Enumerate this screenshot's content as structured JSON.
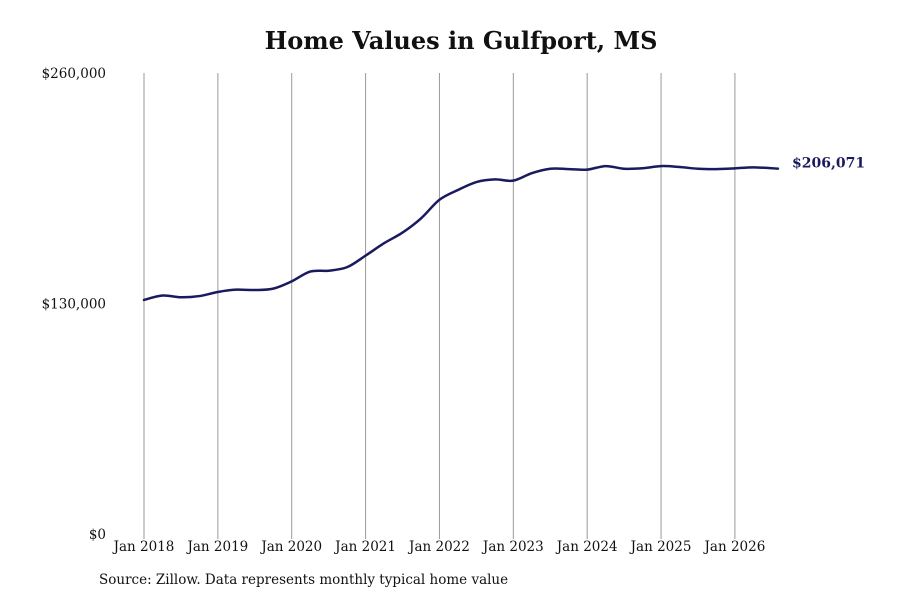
{
  "chart_data": {
    "type": "line",
    "title": "Home Values in Gulfport, MS",
    "xlabel": "",
    "ylabel": "",
    "source": "Source: Zillow. Data represents monthly typical home value",
    "ylim": [
      0,
      260000
    ],
    "yticks": [
      0,
      130000,
      260000
    ],
    "ytick_labels": [
      "$0",
      "$130,000",
      "$260,000"
    ],
    "xticks": [
      "2018-01",
      "2019-01",
      "2020-01",
      "2021-01",
      "2022-01",
      "2023-01",
      "2024-01",
      "2025-01",
      "2026-01"
    ],
    "xtick_labels": [
      "Jan 2018",
      "Jan 2019",
      "Jan 2020",
      "Jan 2021",
      "Jan 2022",
      "Jan 2023",
      "Jan 2024",
      "Jan 2025",
      "Jan 2026"
    ],
    "xlim": [
      "2018-01",
      "2026-08"
    ],
    "grid": "vertical",
    "line_color": "#1a1a5e",
    "end_label": "$206,071",
    "series": [
      {
        "x": [
          "2018-01",
          "2018-04",
          "2018-07",
          "2018-10",
          "2019-01",
          "2019-04",
          "2019-07",
          "2019-10",
          "2020-01",
          "2020-04",
          "2020-07",
          "2020-10",
          "2021-01",
          "2021-04",
          "2021-07",
          "2021-10",
          "2022-01",
          "2022-04",
          "2022-07",
          "2022-10",
          "2023-01",
          "2023-04",
          "2023-07",
          "2023-10",
          "2024-01",
          "2024-04",
          "2024-07",
          "2024-10",
          "2025-01",
          "2025-04",
          "2025-07",
          "2025-10",
          "2026-01",
          "2026-04",
          "2026-08"
        ],
        "values": [
          132000,
          134500,
          133500,
          134200,
          136500,
          137800,
          137600,
          138400,
          142500,
          148000,
          148500,
          150500,
          157000,
          164000,
          170000,
          178000,
          188500,
          194000,
          198500,
          200000,
          199300,
          203500,
          206000,
          205800,
          205500,
          207500,
          206000,
          206300,
          207500,
          207000,
          206000,
          205800,
          206200,
          206800,
          206071
        ]
      }
    ]
  }
}
